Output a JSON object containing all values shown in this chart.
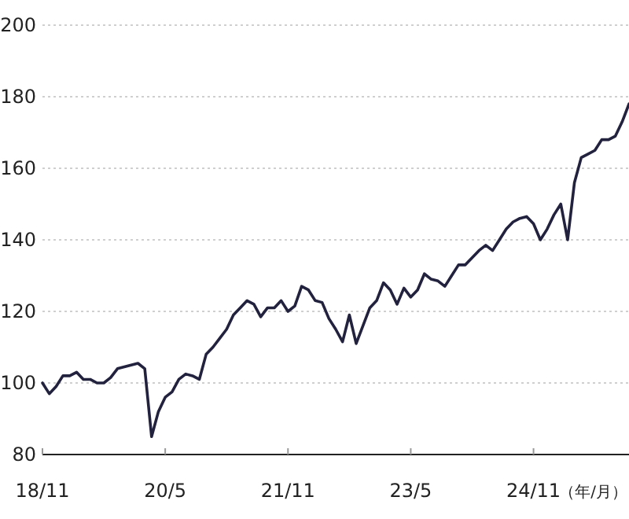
{
  "chart_data": {
    "type": "line",
    "xlabel": "（年/月）",
    "ylim": [
      80,
      200
    ],
    "yticks": [
      80,
      100,
      120,
      140,
      160,
      180,
      200
    ],
    "grid": "y",
    "categories": [
      "18/11",
      null,
      null,
      null,
      null,
      null,
      null,
      null,
      null,
      null,
      null,
      null,
      null,
      null,
      null,
      null,
      null,
      null,
      "20/5",
      null,
      null,
      null,
      null,
      null,
      null,
      null,
      null,
      null,
      null,
      null,
      null,
      null,
      null,
      null,
      null,
      null,
      "21/11",
      null,
      null,
      null,
      null,
      null,
      null,
      null,
      null,
      null,
      null,
      null,
      null,
      null,
      null,
      null,
      null,
      null,
      "23/5",
      null,
      null,
      null,
      null,
      null,
      null,
      null,
      null,
      null,
      null,
      null,
      null,
      null,
      null,
      null,
      null,
      null,
      "24/11",
      null,
      null,
      null,
      null,
      null,
      null,
      null,
      null,
      null,
      null,
      null,
      null,
      null,
      null
    ],
    "series": [
      {
        "color": "#22223f",
        "values": [
          100,
          97,
          99,
          102,
          102,
          103,
          101,
          101,
          100,
          100,
          101.5,
          104,
          104.5,
          105,
          105.5,
          104,
          85,
          92,
          96,
          97.5,
          101,
          102.5,
          102,
          101,
          108,
          110,
          112.5,
          115,
          119,
          121,
          123,
          122,
          118.5,
          121,
          121,
          123,
          120,
          121.5,
          127,
          126,
          123,
          122.5,
          118,
          115,
          111.5,
          119,
          111,
          116,
          121,
          123,
          128,
          126,
          122,
          126.5,
          124,
          126,
          130.5,
          129,
          128.5,
          127,
          130,
          133,
          133,
          135,
          137,
          138.5,
          137,
          140,
          143,
          145,
          146,
          146.5,
          144.5,
          140,
          143,
          147,
          150,
          140,
          156,
          163,
          164,
          165,
          168,
          168,
          169,
          173,
          178
        ]
      }
    ]
  }
}
